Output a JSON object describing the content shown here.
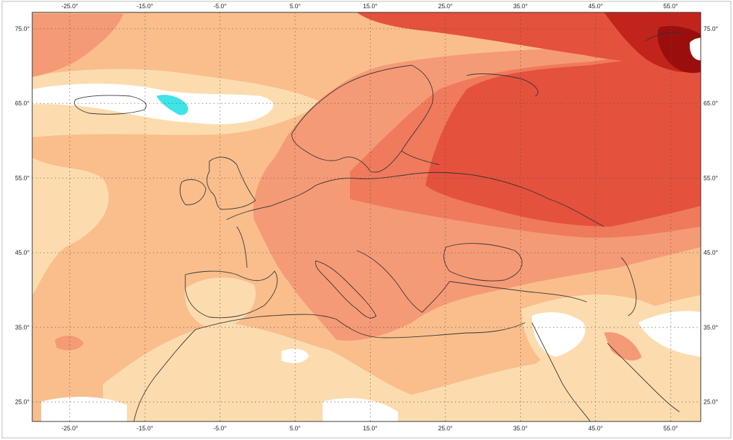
{
  "map": {
    "projection": "equirectangular",
    "lon_range": [
      -30,
      59
    ],
    "lat_range": [
      22.4,
      77.2
    ],
    "grid_step_deg": 10,
    "lon_ticks": [
      "-25.0°",
      "-15.0°",
      "-5.0°",
      "5.0°",
      "15.0°",
      "25.0°",
      "35.0°",
      "45.0°",
      "55.0°"
    ],
    "lon_tick_values": [
      -25,
      -15,
      -5,
      5,
      15,
      25,
      35,
      45,
      55
    ],
    "lat_ticks": [
      "75.0°",
      "65.0°",
      "55.0°",
      "45.0°",
      "35.0°",
      "25.0°"
    ],
    "lat_tick_values": [
      75,
      65,
      55,
      45,
      35,
      25
    ],
    "colors": {
      "white": "#ffffff",
      "cyan": "#3fe3e8",
      "pale": "#fcdcae",
      "light": "#f9be8c",
      "mid": "#f59a76",
      "mid2": "#ef7a5c",
      "red": "#e4513d",
      "deep": "#c2241b",
      "darkest": "#9a0f0d",
      "coast": "#333333",
      "grid": "#555555"
    }
  }
}
